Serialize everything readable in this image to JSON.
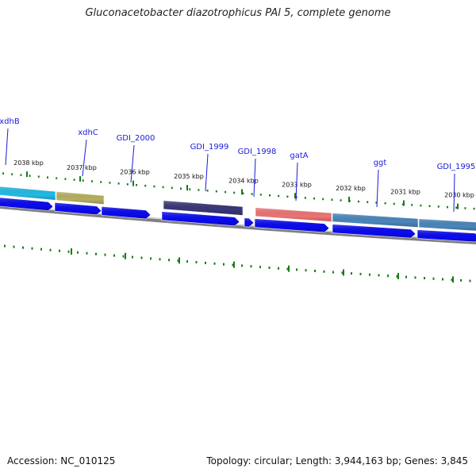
{
  "title": "Gluconacetobacter diazotrophicus PAl 5, complete genome",
  "footer": {
    "accession": "Accession: NC_010125",
    "summary": "Topology: circular; Length: 3,944,163 bp; Genes: 3,845"
  },
  "colors": {
    "cds_arrow": "#0a0af0",
    "backbone": "#808080",
    "tick": "#1a7a1a",
    "label": "#1a1adc"
  },
  "scale_labels": [
    "2038 kbp",
    "2037 kbp",
    "2036 kbp",
    "2035 kbp",
    "2034 kbp",
    "2033 kbp",
    "2032 kbp",
    "2031 kbp",
    "2030 kbp"
  ],
  "features": [
    {
      "name": "xdhB",
      "color": "#22bbe6"
    },
    {
      "name": "xdhC",
      "color": "#b8b060"
    },
    {
      "name": "GDI_2000",
      "color": null
    },
    {
      "name": "GDI_1999",
      "color": "#3a3678"
    },
    {
      "name": "GDI_1998",
      "color": null
    },
    {
      "name": "gatA",
      "color": "#ee7474"
    },
    {
      "name": "ggt",
      "color": "#4a86bc"
    },
    {
      "name": "GDI_1995",
      "color": "#4a86bc"
    }
  ]
}
